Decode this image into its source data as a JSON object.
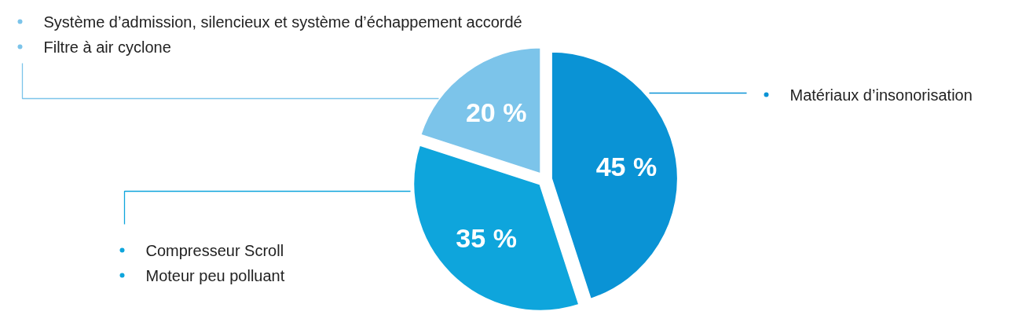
{
  "chart_data": {
    "type": "pie",
    "categories": [
      "Matériaux d’insonorisation",
      "Compresseur Scroll\nMoteur peu polluant",
      "Système d’admission, silencieux et système d’échappement accordé\nFiltre à air cyclone"
    ],
    "values": [
      45,
      35,
      20
    ],
    "colors": [
      "#0a93d5",
      "#0ea5dc",
      "#7cc4ea"
    ],
    "value_labels": [
      "45 %",
      "35 %",
      "20 %"
    ],
    "legend": "left"
  }
}
